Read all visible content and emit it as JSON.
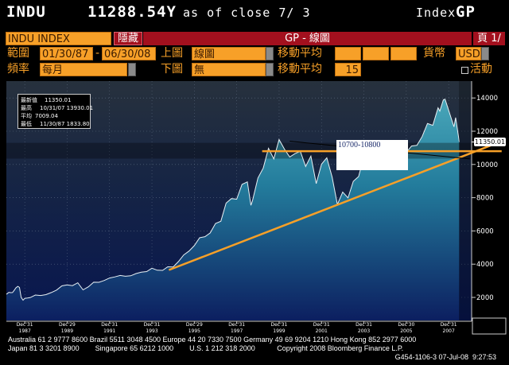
{
  "header": {
    "ticker": "INDU",
    "price": "11288.54Y",
    "as_of": "as of close  7/ 3",
    "function_label": "Index",
    "function_code": "GP"
  },
  "toolbar": {
    "security": "INDU INDEX",
    "hide_button": "隱藏",
    "title": "GP - 線圖",
    "page": "頁 1/"
  },
  "controls": {
    "range_label": "範圍",
    "range_start": "01/30/87",
    "range_sep": "-",
    "range_end": "06/30/08",
    "upper_label": "上圖",
    "upper_value": "線圖",
    "ma_label_1": "移動平均",
    "ma_1": "",
    "ma_2": "",
    "ma_3": "",
    "currency_label": "貨幣",
    "currency": "USD",
    "freq_label": "頻率",
    "freq": "每月",
    "lower_label": "下圖",
    "lower_value": "無",
    "ma_label_2": "移動平均",
    "ma_lower": "15",
    "active_label": "活動"
  },
  "chart_data": {
    "type": "area",
    "title": "GP - 線圖",
    "ylim": [
      600,
      14900
    ],
    "xlim": [
      1987.0,
      2008.95
    ],
    "y_ticks": [
      "2000",
      "4000",
      "6000",
      "8000",
      "10000",
      "12000",
      "14000"
    ],
    "x_ticks": [
      {
        "date": "Dec'31",
        "year": "1987",
        "x": 1988.0
      },
      {
        "date": "Dec'29",
        "year": "1989",
        "x": 1990.0
      },
      {
        "date": "Dec'31",
        "year": "1991",
        "x": 1992.0
      },
      {
        "date": "Dec'31",
        "year": "1993",
        "x": 1994.0
      },
      {
        "date": "Dec'29",
        "year": "1995",
        "x": 1996.0
      },
      {
        "date": "Dec'31",
        "year": "1997",
        "x": 1998.0
      },
      {
        "date": "Dec'31",
        "year": "1999",
        "x": 2000.0
      },
      {
        "date": "Dec'31",
        "year": "2001",
        "x": 2002.0
      },
      {
        "date": "Dec'31",
        "year": "2003",
        "x": 2004.0
      },
      {
        "date": "Dec'30",
        "year": "2005",
        "x": 2006.0
      },
      {
        "date": "Dec'31",
        "year": "2007",
        "x": 2008.0
      }
    ],
    "stats": [
      {
        "label": "最新值",
        "value": "11350.01"
      },
      {
        "label": "最高",
        "value": "10/31/07 13930.01"
      },
      {
        "label": "平均",
        "value": "7009.04"
      },
      {
        "label": "最低",
        "value": "11/30/87 1833.80"
      }
    ],
    "last_value_label": "11350.01",
    "last_value": 11350.01,
    "annotation": {
      "text": "10700-10800",
      "low": 10700,
      "high": 10800
    },
    "trendlines": [
      {
        "name": "support-trendline",
        "color": "#f7a028",
        "x": [
          1994.8,
          2010.2
        ],
        "y": [
          3650,
          11250
        ]
      },
      {
        "name": "horizontal-level",
        "color": "#f7a028",
        "x": [
          1999.2,
          2010.5
        ],
        "y": [
          10800,
          10800
        ]
      },
      {
        "name": "resistance-line",
        "color": "#000000",
        "x": [
          2000.5,
          2009.0
        ],
        "y": [
          11400,
          10330
        ]
      }
    ],
    "series": [
      {
        "name": "INDU",
        "x": [
          1987.08,
          1987.17,
          1987.25,
          1987.33,
          1987.42,
          1987.5,
          1987.58,
          1987.67,
          1987.75,
          1987.83,
          1987.92,
          1988.0,
          1988.25,
          1988.5,
          1988.75,
          1989.0,
          1989.25,
          1989.5,
          1989.75,
          1990.0,
          1990.25,
          1990.5,
          1990.75,
          1991.0,
          1991.25,
          1991.5,
          1991.75,
          1992.0,
          1992.25,
          1992.5,
          1992.75,
          1993.0,
          1993.25,
          1993.5,
          1993.75,
          1994.0,
          1994.25,
          1994.5,
          1994.75,
          1995.0,
          1995.25,
          1995.5,
          1995.75,
          1996.0,
          1996.25,
          1996.5,
          1996.75,
          1997.0,
          1997.25,
          1997.5,
          1997.75,
          1998.0,
          1998.25,
          1998.5,
          1998.67,
          1998.75,
          1999.0,
          1999.25,
          1999.5,
          1999.75,
          2000.0,
          2000.25,
          2000.5,
          2000.75,
          2001.0,
          2001.25,
          2001.5,
          2001.75,
          2002.0,
          2002.25,
          2002.5,
          2002.75,
          2003.0,
          2003.25,
          2003.5,
          2003.75,
          2004.0,
          2004.25,
          2004.5,
          2004.75,
          2005.0,
          2005.25,
          2005.5,
          2005.75,
          2006.0,
          2006.25,
          2006.5,
          2006.75,
          2007.0,
          2007.25,
          2007.5,
          2007.58,
          2007.75,
          2007.83,
          2008.0,
          2008.25,
          2008.33,
          2008.5
        ],
        "y": [
          2158,
          2224,
          2305,
          2286,
          2292,
          2419,
          2572,
          2663,
          2596,
          1994,
          1834,
          1939,
          1988,
          2142,
          2113,
          2169,
          2293,
          2440,
          2693,
          2753,
          2707,
          2881,
          2453,
          2634,
          2914,
          2907,
          3017,
          3169,
          3236,
          3319,
          3272,
          3301,
          3436,
          3516,
          3555,
          3754,
          3636,
          3625,
          3843,
          3834,
          4158,
          4556,
          4789,
          5117,
          5588,
          5655,
          5882,
          6448,
          6584,
          7673,
          7945,
          7908,
          8800,
          8952,
          7539,
          7843,
          9181,
          9786,
          10971,
          10337,
          11497,
          10922,
          10448,
          10651,
          10788,
          9879,
          10502,
          8848,
          10021,
          10404,
          9243,
          7592,
          8342,
          7992,
          8985,
          9275,
          10454,
          10357,
          10435,
          10080,
          10783,
          10504,
          10275,
          10569,
          10718,
          11109,
          11150,
          11679,
          12463,
          12354,
          13409,
          13212,
          13896,
          13930,
          13265,
          12263,
          12820,
          11350
        ]
      }
    ]
  },
  "footer": {
    "line1": "Australia 61 2 9777 8600 Brazil 5511 3048 4500 Europe 44 20 7330 7500 Germany 49 69 9204 1210 Hong Kong 852 2977 6000",
    "line2": "Japan 81 3 3201 8900        Singapore 65 6212 1000        U.S. 1 212 318 2000           Copyright 2008 Bloomberg Finance L.P.",
    "line3": "G454-1106-3 07-Jul-08  9:27:53"
  },
  "colors": {
    "accent": "#f7a028",
    "titlebar": "#a3101e",
    "area_top": "#4aa8ba",
    "area_bottom": "#0c1f60"
  }
}
